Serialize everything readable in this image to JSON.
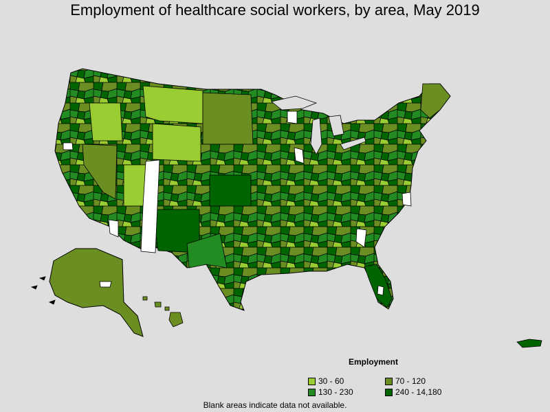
{
  "title": "Employment of healthcare social workers, by area, May 2019",
  "legend": {
    "title": "Employment",
    "items": [
      {
        "label": "30 - 60",
        "color": "#9acd32"
      },
      {
        "label": "70 - 120",
        "color": "#6b8e23"
      },
      {
        "label": "130 - 230",
        "color": "#228b22"
      },
      {
        "label": "240 - 14,180",
        "color": "#006400"
      }
    ]
  },
  "note": "Blank areas indicate data not available.",
  "colors": {
    "background": "#dedede",
    "no_data": "#ffffff",
    "border": "#000000"
  }
}
